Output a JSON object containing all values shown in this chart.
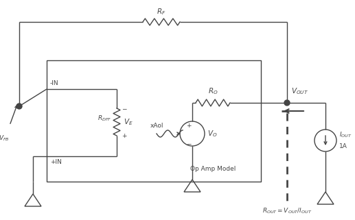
{
  "bg_color": "#ffffff",
  "line_color": "#444444",
  "fig_width": 5.17,
  "fig_height": 3.21,
  "labels": {
    "RF": "$R_F$",
    "RO": "$R_O$",
    "RDIFF": "$R_{DFF}$",
    "VE": "$V_E$",
    "VO": "$V_O$",
    "xAol": "xAol",
    "VFB": "$V_{FB}$",
    "VOUT": "$V_{OUT}$",
    "IOUT": "$I_{OUT}$",
    "1A": "1A",
    "ROUT_eq": "$R_{OUT} = V_{OUT}/I_{OUT}$",
    "neg_in": "-IN",
    "pos_in": "+IN",
    "op_amp_model": "Op Amp Model"
  }
}
